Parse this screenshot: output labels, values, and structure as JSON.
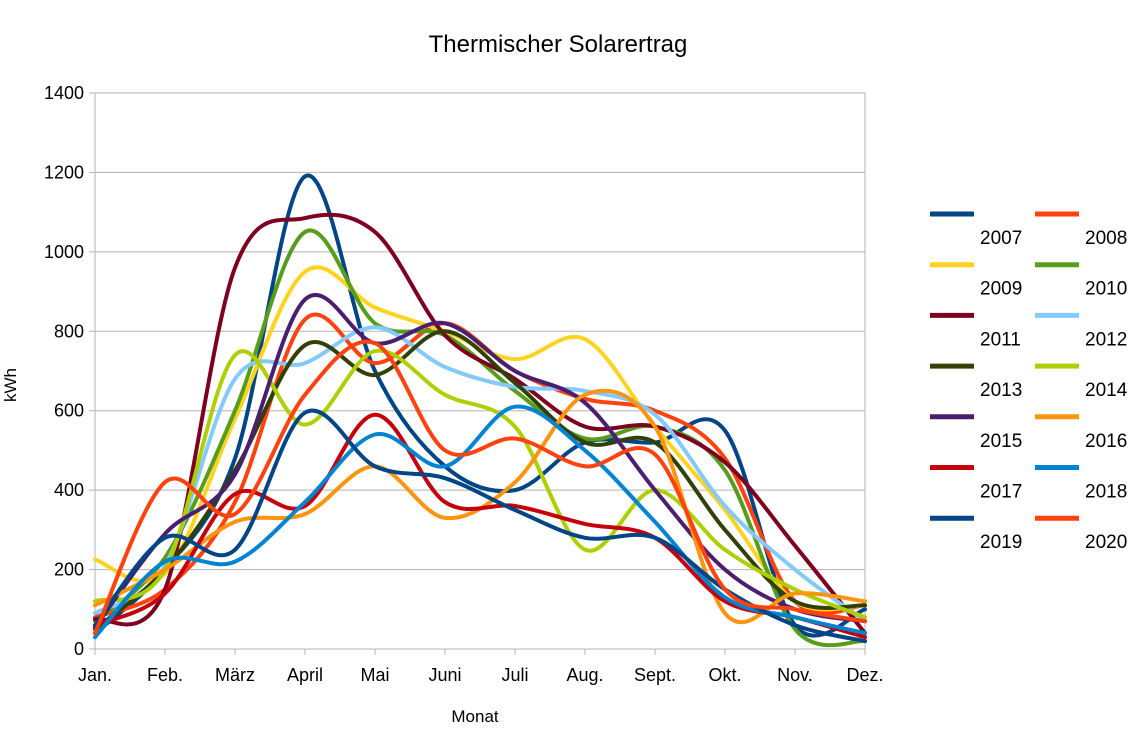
{
  "chart_data": {
    "type": "line",
    "title": "Thermischer Solarertrag",
    "xlabel": "Monat",
    "ylabel": "kWh",
    "ylim": [
      0,
      1400
    ],
    "yticks": [
      0,
      200,
      400,
      600,
      800,
      1000,
      1200,
      1400
    ],
    "grid": true,
    "legend": "right",
    "smooth": true,
    "categories": [
      "Jan.",
      "Feb.",
      "März",
      "April",
      "Mai",
      "Juni",
      "Juli",
      "Aug.",
      "Sept.",
      "Okt.",
      "Nov.",
      "Dez."
    ],
    "series": [
      {
        "name": "2007",
        "color": "#004586",
        "values": [
          40,
          200,
          480,
          1190,
          700,
          460,
          400,
          520,
          520,
          550,
          60,
          100
        ]
      },
      {
        "name": "2008",
        "color": "#ff420e",
        "values": [
          80,
          150,
          370,
          830,
          720,
          820,
          700,
          630,
          600,
          480,
          120,
          110
        ]
      },
      {
        "name": "2009",
        "color": "#ffd320",
        "values": [
          225,
          190,
          580,
          950,
          860,
          800,
          730,
          780,
          560,
          350,
          120,
          110
        ]
      },
      {
        "name": "2010",
        "color": "#579d1c",
        "values": [
          70,
          230,
          600,
          1050,
          820,
          790,
          650,
          530,
          560,
          450,
          50,
          20
        ]
      },
      {
        "name": "2011",
        "color": "#7e0021",
        "values": [
          75,
          150,
          960,
          1085,
          1050,
          790,
          680,
          560,
          560,
          470,
          260,
          40
        ]
      },
      {
        "name": "2012",
        "color": "#83caff",
        "values": [
          90,
          210,
          680,
          720,
          810,
          710,
          660,
          650,
          590,
          360,
          200,
          70
        ]
      },
      {
        "name": "2013",
        "color": "#314004",
        "values": [
          50,
          200,
          450,
          765,
          690,
          800,
          670,
          520,
          520,
          300,
          120,
          110
        ]
      },
      {
        "name": "2014",
        "color": "#aecf00",
        "values": [
          120,
          200,
          740,
          565,
          750,
          640,
          560,
          250,
          400,
          250,
          150,
          80
        ]
      },
      {
        "name": "2015",
        "color": "#4b1f6f",
        "values": [
          55,
          290,
          440,
          880,
          770,
          820,
          700,
          620,
          400,
          200,
          100,
          70
        ]
      },
      {
        "name": "2016",
        "color": "#ff950e",
        "values": [
          110,
          200,
          320,
          340,
          460,
          330,
          420,
          640,
          560,
          90,
          140,
          120
        ]
      },
      {
        "name": "2017",
        "color": "#c5000b",
        "values": [
          60,
          140,
          390,
          360,
          590,
          370,
          360,
          315,
          280,
          120,
          80,
          30
        ]
      },
      {
        "name": "2018",
        "color": "#0084d1",
        "values": [
          30,
          220,
          220,
          370,
          540,
          460,
          610,
          500,
          320,
          130,
          80,
          40
        ]
      },
      {
        "name": "2019",
        "color": "#004586",
        "values": [
          60,
          280,
          250,
          595,
          460,
          430,
          350,
          280,
          280,
          150,
          60,
          20
        ]
      },
      {
        "name": "2020",
        "color": "#ff420e",
        "values": [
          40,
          420,
          340,
          640,
          770,
          500,
          530,
          460,
          490,
          150,
          100,
          70
        ]
      }
    ]
  }
}
